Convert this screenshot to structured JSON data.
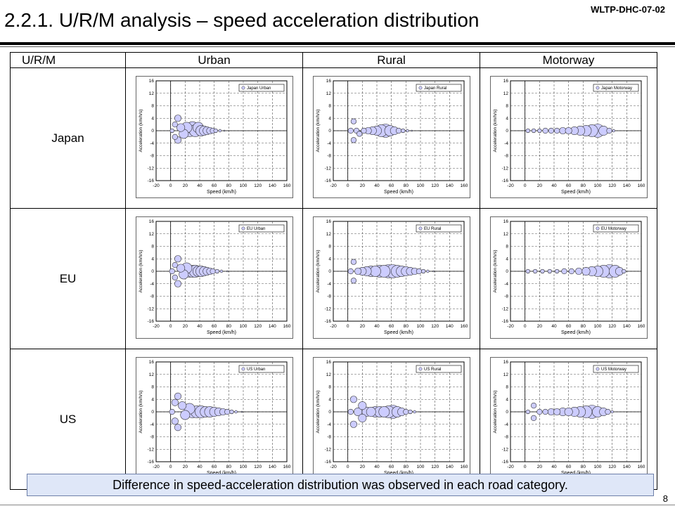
{
  "doc_id": "WLTP-DHC-07-02",
  "title": "2.2.1. U/R/M analysis – speed acceleration distribution",
  "table": {
    "corner": "U/R/M",
    "columns": [
      "Urban",
      "Rural",
      "Motorway"
    ],
    "rows": [
      "Japan",
      "EU",
      "US"
    ]
  },
  "caption": "Difference in speed-acceleration distribution was observed in each road category.",
  "page_number": "8",
  "colors": {
    "bubble_fill": "#ccccff",
    "bubble_stroke": "#333333",
    "caption_bg": "#dfe7f8"
  },
  "chart_data": [
    {
      "type": "scatter",
      "subtype": "bubble",
      "legend": "Japan Urban",
      "xlabel": "Speed (km/h)",
      "ylabel": "Acceleration (km/h/s)",
      "xlim": [
        -20,
        160
      ],
      "ylim": [
        -16,
        16
      ],
      "xticks": [
        -20,
        0,
        20,
        40,
        60,
        80,
        100,
        120,
        140,
        160
      ],
      "yticks": [
        16,
        12,
        8,
        4,
        0,
        -4,
        -8,
        -12,
        -16
      ],
      "grid": true,
      "legend_position": "top-right",
      "points": [
        {
          "x": 2,
          "y": 0,
          "r": 3
        },
        {
          "x": 6,
          "y": 2,
          "r": 4
        },
        {
          "x": 6,
          "y": -2,
          "r": 4
        },
        {
          "x": 10,
          "y": 4,
          "r": 5
        },
        {
          "x": 10,
          "y": -3,
          "r": 5
        },
        {
          "x": 14,
          "y": 1,
          "r": 6
        },
        {
          "x": 18,
          "y": -1,
          "r": 7
        },
        {
          "x": 22,
          "y": 1,
          "r": 8
        },
        {
          "x": 26,
          "y": 0,
          "r": 9
        },
        {
          "x": 30,
          "y": 1,
          "r": 9
        },
        {
          "x": 34,
          "y": 0,
          "r": 9
        },
        {
          "x": 38,
          "y": 1,
          "r": 8
        },
        {
          "x": 42,
          "y": 0,
          "r": 8
        },
        {
          "x": 46,
          "y": 0,
          "r": 7
        },
        {
          "x": 50,
          "y": 0,
          "r": 6
        },
        {
          "x": 54,
          "y": 0,
          "r": 5
        },
        {
          "x": 58,
          "y": 0,
          "r": 4
        },
        {
          "x": 62,
          "y": 0,
          "r": 3
        },
        {
          "x": 68,
          "y": 0,
          "r": 2
        },
        {
          "x": 74,
          "y": 0,
          "r": 1
        }
      ]
    },
    {
      "type": "scatter",
      "subtype": "bubble",
      "legend": "Japan Rural",
      "xlabel": "Speed (km/h)",
      "ylabel": "Acceleration (km/h/s)",
      "xlim": [
        -20,
        160
      ],
      "ylim": [
        -16,
        16
      ],
      "xticks": [
        -20,
        0,
        20,
        40,
        60,
        80,
        100,
        120,
        140,
        160
      ],
      "yticks": [
        16,
        12,
        8,
        4,
        0,
        -4,
        -8,
        -12,
        -16
      ],
      "grid": true,
      "legend_position": "top-right",
      "points": [
        {
          "x": 4,
          "y": 0,
          "r": 4
        },
        {
          "x": 8,
          "y": 3,
          "r": 4
        },
        {
          "x": 8,
          "y": -3,
          "r": 4
        },
        {
          "x": 12,
          "y": 0,
          "r": 4
        },
        {
          "x": 16,
          "y": -1,
          "r": 4
        },
        {
          "x": 22,
          "y": 0,
          "r": 4
        },
        {
          "x": 28,
          "y": 0,
          "r": 5
        },
        {
          "x": 34,
          "y": 0,
          "r": 6
        },
        {
          "x": 40,
          "y": 0,
          "r": 7
        },
        {
          "x": 46,
          "y": 0,
          "r": 9
        },
        {
          "x": 52,
          "y": 0,
          "r": 10
        },
        {
          "x": 58,
          "y": 0,
          "r": 8
        },
        {
          "x": 64,
          "y": 0,
          "r": 6
        },
        {
          "x": 70,
          "y": 0,
          "r": 4
        },
        {
          "x": 76,
          "y": 0,
          "r": 3
        },
        {
          "x": 82,
          "y": 0,
          "r": 2
        },
        {
          "x": 88,
          "y": 0,
          "r": 1
        }
      ]
    },
    {
      "type": "scatter",
      "subtype": "bubble",
      "legend": "Japan Motorway",
      "xlabel": "Speed (km/h)",
      "ylabel": "Acceleration (km/h/s)",
      "xlim": [
        -20,
        160
      ],
      "ylim": [
        -16,
        16
      ],
      "xticks": [
        -20,
        0,
        20,
        40,
        60,
        80,
        100,
        120,
        140,
        160
      ],
      "yticks": [
        16,
        12,
        8,
        4,
        0,
        -4,
        -8,
        -12,
        -16
      ],
      "grid": true,
      "legend_position": "top-right",
      "points": [
        {
          "x": 4,
          "y": 0,
          "r": 3
        },
        {
          "x": 12,
          "y": 0,
          "r": 3
        },
        {
          "x": 20,
          "y": 0,
          "r": 3
        },
        {
          "x": 28,
          "y": 0,
          "r": 4
        },
        {
          "x": 36,
          "y": 0,
          "r": 4
        },
        {
          "x": 44,
          "y": 0,
          "r": 4
        },
        {
          "x": 52,
          "y": 0,
          "r": 5
        },
        {
          "x": 60,
          "y": 0,
          "r": 5
        },
        {
          "x": 68,
          "y": 0,
          "r": 6
        },
        {
          "x": 76,
          "y": 0,
          "r": 7
        },
        {
          "x": 84,
          "y": 0,
          "r": 8
        },
        {
          "x": 92,
          "y": 0,
          "r": 9
        },
        {
          "x": 100,
          "y": 0,
          "r": 10
        },
        {
          "x": 108,
          "y": 0,
          "r": 7
        },
        {
          "x": 116,
          "y": 0,
          "r": 4
        },
        {
          "x": 122,
          "y": 0,
          "r": 2
        }
      ]
    },
    {
      "type": "scatter",
      "subtype": "bubble",
      "legend": "EU Urban",
      "xlabel": "Speed (km/h)",
      "ylabel": "Acceleration (km/h/s)",
      "xlim": [
        -20,
        160
      ],
      "ylim": [
        -16,
        16
      ],
      "xticks": [
        -20,
        0,
        20,
        40,
        60,
        80,
        100,
        120,
        140,
        160
      ],
      "yticks": [
        16,
        12,
        8,
        4,
        0,
        -4,
        -8,
        -12,
        -16
      ],
      "grid": true,
      "legend_position": "top-right",
      "points": [
        {
          "x": 2,
          "y": 0,
          "r": 4
        },
        {
          "x": 6,
          "y": 2,
          "r": 4
        },
        {
          "x": 6,
          "y": -2,
          "r": 4
        },
        {
          "x": 10,
          "y": 4,
          "r": 5
        },
        {
          "x": 10,
          "y": -4,
          "r": 5
        },
        {
          "x": 14,
          "y": 1,
          "r": 6
        },
        {
          "x": 18,
          "y": -1,
          "r": 7
        },
        {
          "x": 22,
          "y": 1,
          "r": 8
        },
        {
          "x": 26,
          "y": 0,
          "r": 9
        },
        {
          "x": 30,
          "y": 0,
          "r": 9
        },
        {
          "x": 34,
          "y": 0,
          "r": 9
        },
        {
          "x": 38,
          "y": 0,
          "r": 8
        },
        {
          "x": 42,
          "y": 0,
          "r": 8
        },
        {
          "x": 46,
          "y": 0,
          "r": 7
        },
        {
          "x": 50,
          "y": 0,
          "r": 6
        },
        {
          "x": 54,
          "y": 0,
          "r": 5
        },
        {
          "x": 58,
          "y": 0,
          "r": 4
        },
        {
          "x": 64,
          "y": 0,
          "r": 3
        },
        {
          "x": 70,
          "y": 0,
          "r": 2
        },
        {
          "x": 78,
          "y": 0,
          "r": 1
        }
      ]
    },
    {
      "type": "scatter",
      "subtype": "bubble",
      "legend": "EU Rural",
      "xlabel": "Speed (km/h)",
      "ylabel": "Acceleration (km/h/s)",
      "xlim": [
        -20,
        160
      ],
      "ylim": [
        -16,
        16
      ],
      "xticks": [
        -20,
        0,
        20,
        40,
        60,
        80,
        100,
        120,
        140,
        160
      ],
      "yticks": [
        16,
        12,
        8,
        4,
        0,
        -4,
        -8,
        -12,
        -16
      ],
      "grid": true,
      "legend_position": "top-right",
      "points": [
        {
          "x": 4,
          "y": 0,
          "r": 4
        },
        {
          "x": 8,
          "y": 3,
          "r": 4
        },
        {
          "x": 8,
          "y": -3,
          "r": 4
        },
        {
          "x": 14,
          "y": 0,
          "r": 5
        },
        {
          "x": 20,
          "y": 0,
          "r": 6
        },
        {
          "x": 26,
          "y": 0,
          "r": 7
        },
        {
          "x": 32,
          "y": 0,
          "r": 8
        },
        {
          "x": 38,
          "y": 0,
          "r": 8
        },
        {
          "x": 44,
          "y": 0,
          "r": 9
        },
        {
          "x": 50,
          "y": 0,
          "r": 9
        },
        {
          "x": 56,
          "y": 0,
          "r": 10
        },
        {
          "x": 62,
          "y": 0,
          "r": 10
        },
        {
          "x": 68,
          "y": 0,
          "r": 9
        },
        {
          "x": 74,
          "y": 0,
          "r": 8
        },
        {
          "x": 80,
          "y": 0,
          "r": 7
        },
        {
          "x": 86,
          "y": 0,
          "r": 6
        },
        {
          "x": 92,
          "y": 0,
          "r": 5
        },
        {
          "x": 98,
          "y": 0,
          "r": 4
        },
        {
          "x": 104,
          "y": 0,
          "r": 3
        },
        {
          "x": 110,
          "y": 0,
          "r": 2
        },
        {
          "x": 118,
          "y": 0,
          "r": 1
        }
      ]
    },
    {
      "type": "scatter",
      "subtype": "bubble",
      "legend": "EU Motorway",
      "xlabel": "Speed (km/h)",
      "ylabel": "Acceleration (km/h/s)",
      "xlim": [
        -20,
        160
      ],
      "ylim": [
        -16,
        16
      ],
      "xticks": [
        -20,
        0,
        20,
        40,
        60,
        80,
        100,
        120,
        140,
        160
      ],
      "yticks": [
        16,
        12,
        8,
        4,
        0,
        -4,
        -8,
        -12,
        -16
      ],
      "grid": true,
      "legend_position": "top-right",
      "points": [
        {
          "x": 4,
          "y": 0,
          "r": 3
        },
        {
          "x": 14,
          "y": 0,
          "r": 3
        },
        {
          "x": 24,
          "y": 0,
          "r": 3
        },
        {
          "x": 34,
          "y": 0,
          "r": 3
        },
        {
          "x": 44,
          "y": 0,
          "r": 3
        },
        {
          "x": 54,
          "y": 0,
          "r": 4
        },
        {
          "x": 64,
          "y": 0,
          "r": 4
        },
        {
          "x": 74,
          "y": 0,
          "r": 5
        },
        {
          "x": 84,
          "y": 0,
          "r": 6
        },
        {
          "x": 92,
          "y": 0,
          "r": 7
        },
        {
          "x": 100,
          "y": 0,
          "r": 8
        },
        {
          "x": 108,
          "y": 0,
          "r": 9
        },
        {
          "x": 116,
          "y": 0,
          "r": 10
        },
        {
          "x": 124,
          "y": 0,
          "r": 9
        },
        {
          "x": 130,
          "y": 0,
          "r": 6
        },
        {
          "x": 136,
          "y": 0,
          "r": 3
        }
      ]
    },
    {
      "type": "scatter",
      "subtype": "bubble",
      "legend": "US Urban",
      "xlabel": "Speed (km/h)",
      "ylabel": "Acceleration (km/h/s)",
      "xlim": [
        -20,
        160
      ],
      "ylim": [
        -16,
        16
      ],
      "xticks": [
        -20,
        0,
        20,
        40,
        60,
        80,
        100,
        120,
        140,
        160
      ],
      "yticks": [
        16,
        12,
        8,
        4,
        0,
        -4,
        -8,
        -12,
        -16
      ],
      "grid": true,
      "legend_position": "top-right",
      "points": [
        {
          "x": 2,
          "y": 0,
          "r": 4
        },
        {
          "x": 6,
          "y": 3,
          "r": 5
        },
        {
          "x": 6,
          "y": -3,
          "r": 5
        },
        {
          "x": 10,
          "y": 5,
          "r": 5
        },
        {
          "x": 10,
          "y": -5,
          "r": 5
        },
        {
          "x": 16,
          "y": 2,
          "r": 6
        },
        {
          "x": 20,
          "y": -1,
          "r": 7
        },
        {
          "x": 26,
          "y": 1,
          "r": 8
        },
        {
          "x": 30,
          "y": 0,
          "r": 9
        },
        {
          "x": 36,
          "y": 0,
          "r": 9
        },
        {
          "x": 42,
          "y": 0,
          "r": 9
        },
        {
          "x": 48,
          "y": 0,
          "r": 8
        },
        {
          "x": 54,
          "y": 0,
          "r": 8
        },
        {
          "x": 60,
          "y": 0,
          "r": 7
        },
        {
          "x": 66,
          "y": 0,
          "r": 6
        },
        {
          "x": 72,
          "y": 0,
          "r": 5
        },
        {
          "x": 78,
          "y": 0,
          "r": 4
        },
        {
          "x": 84,
          "y": 0,
          "r": 3
        },
        {
          "x": 90,
          "y": 0,
          "r": 2
        },
        {
          "x": 98,
          "y": 0,
          "r": 1
        }
      ]
    },
    {
      "type": "scatter",
      "subtype": "bubble",
      "legend": "US Rural",
      "xlabel": "Speed (km/h)",
      "ylabel": "Acceleration (km/h/s)",
      "xlim": [
        -20,
        160
      ],
      "ylim": [
        -16,
        16
      ],
      "xticks": [
        -20,
        0,
        20,
        40,
        60,
        80,
        100,
        120,
        140,
        160
      ],
      "yticks": [
        16,
        12,
        8,
        4,
        0,
        -4,
        -8,
        -12,
        -16
      ],
      "grid": true,
      "legend_position": "top-right",
      "points": [
        {
          "x": 4,
          "y": 0,
          "r": 4
        },
        {
          "x": 8,
          "y": 4,
          "r": 5
        },
        {
          "x": 8,
          "y": -4,
          "r": 5
        },
        {
          "x": 14,
          "y": 0,
          "r": 6
        },
        {
          "x": 20,
          "y": 2,
          "r": 6
        },
        {
          "x": 20,
          "y": -2,
          "r": 6
        },
        {
          "x": 26,
          "y": 0,
          "r": 7
        },
        {
          "x": 32,
          "y": 0,
          "r": 7
        },
        {
          "x": 38,
          "y": 0,
          "r": 8
        },
        {
          "x": 44,
          "y": 0,
          "r": 8
        },
        {
          "x": 50,
          "y": 0,
          "r": 8
        },
        {
          "x": 56,
          "y": 0,
          "r": 9
        },
        {
          "x": 62,
          "y": 0,
          "r": 10
        },
        {
          "x": 68,
          "y": 0,
          "r": 8
        },
        {
          "x": 74,
          "y": 0,
          "r": 6
        },
        {
          "x": 80,
          "y": 0,
          "r": 4
        },
        {
          "x": 86,
          "y": 0,
          "r": 3
        },
        {
          "x": 92,
          "y": 0,
          "r": 2
        }
      ]
    },
    {
      "type": "scatter",
      "subtype": "bubble",
      "legend": "US Motorway",
      "xlabel": "Speed (km/h)",
      "ylabel": "Acceleration (km/h/s)",
      "xlim": [
        -20,
        160
      ],
      "ylim": [
        -16,
        16
      ],
      "xticks": [
        -20,
        0,
        20,
        40,
        60,
        80,
        100,
        120,
        140,
        160
      ],
      "yticks": [
        16,
        12,
        8,
        4,
        0,
        -4,
        -8,
        -12,
        -16
      ],
      "grid": true,
      "legend_position": "top-right",
      "points": [
        {
          "x": 4,
          "y": 0,
          "r": 3
        },
        {
          "x": 12,
          "y": 2,
          "r": 4
        },
        {
          "x": 12,
          "y": -2,
          "r": 4
        },
        {
          "x": 20,
          "y": 0,
          "r": 4
        },
        {
          "x": 28,
          "y": 0,
          "r": 4
        },
        {
          "x": 36,
          "y": 0,
          "r": 5
        },
        {
          "x": 44,
          "y": 0,
          "r": 5
        },
        {
          "x": 52,
          "y": 0,
          "r": 6
        },
        {
          "x": 60,
          "y": 0,
          "r": 6
        },
        {
          "x": 68,
          "y": 0,
          "r": 7
        },
        {
          "x": 76,
          "y": 0,
          "r": 8
        },
        {
          "x": 84,
          "y": 0,
          "r": 9
        },
        {
          "x": 92,
          "y": 0,
          "r": 10
        },
        {
          "x": 100,
          "y": 0,
          "r": 8
        },
        {
          "x": 108,
          "y": 0,
          "r": 6
        },
        {
          "x": 114,
          "y": 0,
          "r": 4
        },
        {
          "x": 120,
          "y": 0,
          "r": 2
        }
      ]
    }
  ]
}
